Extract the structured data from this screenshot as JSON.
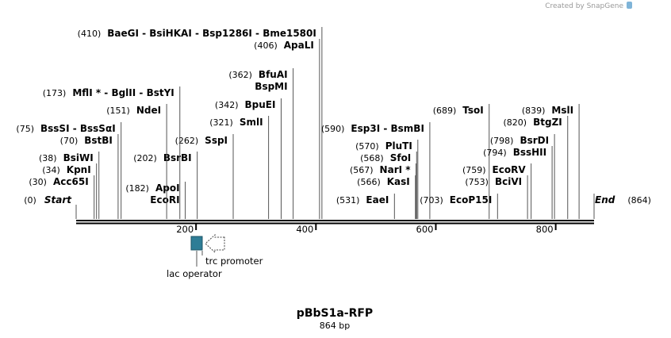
{
  "branding": "Created by SnapGene",
  "start": {
    "position": "(0)",
    "label": "Start"
  },
  "end": {
    "label": "End",
    "position": "(864)"
  },
  "sites": [
    {
      "position": "(410)",
      "lines": [
        "BaeGI  - BsiHKAI  - Bsp1286I  - Bme1580I"
      ]
    },
    {
      "position": "(406)",
      "lines": [
        "ApaLI"
      ]
    },
    {
      "position": "(362)",
      "lines": [
        "BfuAI",
        "BspMI"
      ]
    },
    {
      "position": "(342)",
      "lines": [
        "BpuEI"
      ]
    },
    {
      "position": "(321)",
      "lines": [
        "SmlI"
      ]
    },
    {
      "position": "(262)",
      "lines": [
        "SspI"
      ]
    },
    {
      "position": "(202)",
      "lines": [
        "BsrBI"
      ]
    },
    {
      "position": "(182)",
      "lines": [
        "ApoI",
        "EcoRI"
      ]
    },
    {
      "position": "(173)",
      "lines": [
        "MflI * - BglII  - BstYI"
      ]
    },
    {
      "position": "(151)",
      "lines": [
        "NdeI"
      ]
    },
    {
      "position": "(75)",
      "lines": [
        "BssSI  - BssSαI"
      ]
    },
    {
      "position": "(70)",
      "lines": [
        "BstBI"
      ]
    },
    {
      "position": "(38)",
      "lines": [
        "BsiWI"
      ]
    },
    {
      "position": "(34)",
      "lines": [
        "KpnI"
      ]
    },
    {
      "position": "(30)",
      "lines": [
        "Acc65I"
      ]
    },
    {
      "position": "(590)",
      "lines": [
        "Esp3I  - BsmBI"
      ]
    },
    {
      "position": "(570)",
      "lines": [
        "PluTI"
      ]
    },
    {
      "position": "(568)",
      "lines": [
        "SfoI"
      ]
    },
    {
      "position": "(567)",
      "lines": [
        "NarI *"
      ]
    },
    {
      "position": "(566)",
      "lines": [
        "KasI"
      ]
    },
    {
      "position": "(531)",
      "lines": [
        "EaeI"
      ]
    },
    {
      "position": "(703)",
      "lines": [
        "EcoP15I"
      ]
    },
    {
      "position": "(689)",
      "lines": [
        "TsoI"
      ]
    },
    {
      "position": "(839)",
      "lines": [
        "MslI"
      ]
    },
    {
      "position": "(820)",
      "lines": [
        "BtgZI"
      ]
    },
    {
      "position": "(798)",
      "lines": [
        "BsrDI"
      ]
    },
    {
      "position": "(794)",
      "lines": [
        "BssHII"
      ]
    },
    {
      "position": "(759)",
      "lines": [
        "EcoRV"
      ]
    },
    {
      "position": "(753)",
      "lines": [
        "BciVI"
      ]
    }
  ],
  "axis": {
    "ticks": [
      200,
      400,
      600,
      800
    ]
  },
  "features": [
    {
      "label": "lac operator"
    },
    {
      "label": "trc promoter"
    }
  ],
  "title": "pBbS1a-RFP",
  "subtitle": "864 bp"
}
